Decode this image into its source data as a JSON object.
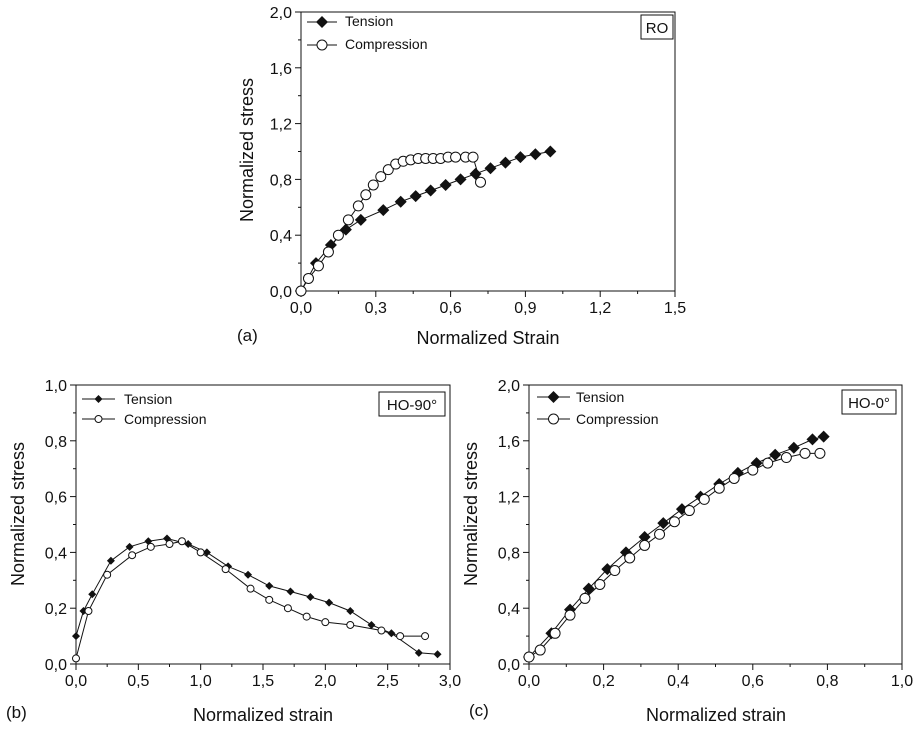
{
  "chart_data": [
    {
      "type": "line",
      "panel_label": "(a)",
      "tag": "RO",
      "xlabel": "Normalized Strain",
      "ylabel": "Normalized stress",
      "xlim": [
        0,
        1.5
      ],
      "ylim": [
        0,
        2.0
      ],
      "xticks": [
        "0,0",
        "0,3",
        "0,6",
        "0,9",
        "1,2",
        "1,5"
      ],
      "yticks": [
        "0,0",
        "0,4",
        "0,8",
        "1,2",
        "1,6",
        "2,0"
      ],
      "grid": false,
      "legend_position": "top-left",
      "series": [
        {
          "name": "Tension",
          "marker": "filled-diamond",
          "x": [
            0.0,
            0.06,
            0.12,
            0.18,
            0.24,
            0.33,
            0.4,
            0.46,
            0.52,
            0.58,
            0.64,
            0.7,
            0.76,
            0.82,
            0.88,
            0.94,
            1.0
          ],
          "y": [
            0.0,
            0.2,
            0.33,
            0.44,
            0.51,
            0.58,
            0.64,
            0.68,
            0.72,
            0.76,
            0.8,
            0.84,
            0.88,
            0.92,
            0.96,
            0.98,
            1.0
          ]
        },
        {
          "name": "Compression",
          "marker": "open-circle",
          "x": [
            0.0,
            0.03,
            0.07,
            0.11,
            0.15,
            0.19,
            0.23,
            0.26,
            0.29,
            0.32,
            0.35,
            0.38,
            0.41,
            0.44,
            0.47,
            0.5,
            0.53,
            0.56,
            0.59,
            0.62,
            0.66,
            0.69,
            0.72
          ],
          "y": [
            0.0,
            0.09,
            0.18,
            0.28,
            0.4,
            0.51,
            0.61,
            0.69,
            0.76,
            0.82,
            0.87,
            0.91,
            0.93,
            0.94,
            0.95,
            0.95,
            0.95,
            0.95,
            0.96,
            0.96,
            0.96,
            0.96,
            0.78
          ]
        }
      ]
    },
    {
      "type": "line",
      "panel_label": "(b)",
      "tag": "HO-90°",
      "xlabel": "Normalized strain",
      "ylabel": "Normalized stress",
      "xlim": [
        0,
        3.0
      ],
      "ylim": [
        0,
        1.0
      ],
      "xticks": [
        "0,0",
        "0,5",
        "1,0",
        "1,5",
        "2,0",
        "2,5",
        "3,0"
      ],
      "yticks": [
        "0,0",
        "0,2",
        "0,4",
        "0,6",
        "0,8",
        "1,0"
      ],
      "grid": false,
      "legend_position": "top-left",
      "series": [
        {
          "name": "Tension",
          "marker": "filled-diamond",
          "x": [
            0.0,
            0.06,
            0.13,
            0.28,
            0.43,
            0.58,
            0.73,
            0.9,
            1.05,
            1.22,
            1.38,
            1.55,
            1.72,
            1.88,
            2.03,
            2.2,
            2.37,
            2.53,
            2.75,
            2.9
          ],
          "y": [
            0.1,
            0.19,
            0.25,
            0.37,
            0.42,
            0.44,
            0.45,
            0.43,
            0.4,
            0.35,
            0.32,
            0.28,
            0.26,
            0.24,
            0.22,
            0.19,
            0.14,
            0.11,
            0.04,
            0.035
          ]
        },
        {
          "name": "Compression",
          "marker": "open-circle",
          "x": [
            0.0,
            0.1,
            0.25,
            0.45,
            0.6,
            0.75,
            0.85,
            1.0,
            1.2,
            1.4,
            1.55,
            1.7,
            1.85,
            2.0,
            2.2,
            2.45,
            2.6,
            2.8
          ],
          "y": [
            0.02,
            0.19,
            0.32,
            0.39,
            0.42,
            0.43,
            0.44,
            0.4,
            0.34,
            0.27,
            0.23,
            0.2,
            0.17,
            0.15,
            0.14,
            0.12,
            0.1,
            0.1
          ]
        }
      ]
    },
    {
      "type": "line",
      "panel_label": "(c)",
      "tag": "HO-0°",
      "xlabel": "Normalized strain",
      "ylabel": "Normalized stress",
      "xlim": [
        0,
        1.0
      ],
      "ylim": [
        0,
        2.0
      ],
      "xticks": [
        "0,0",
        "0,2",
        "0,4",
        "0,6",
        "0,8",
        "1,0"
      ],
      "yticks": [
        "0,0",
        "0,4",
        "0,8",
        "1,2",
        "1,6",
        "2,0"
      ],
      "grid": false,
      "legend_position": "top-left",
      "series": [
        {
          "name": "Tension",
          "marker": "filled-diamond",
          "x": [
            0.0,
            0.06,
            0.11,
            0.16,
            0.21,
            0.26,
            0.31,
            0.36,
            0.41,
            0.46,
            0.51,
            0.56,
            0.61,
            0.66,
            0.71,
            0.76,
            0.79
          ],
          "y": [
            0.05,
            0.22,
            0.39,
            0.54,
            0.68,
            0.8,
            0.91,
            1.01,
            1.11,
            1.2,
            1.29,
            1.37,
            1.44,
            1.5,
            1.55,
            1.61,
            1.63
          ]
        },
        {
          "name": "Compression",
          "marker": "open-circle",
          "x": [
            0.0,
            0.03,
            0.07,
            0.11,
            0.15,
            0.19,
            0.23,
            0.27,
            0.31,
            0.35,
            0.39,
            0.43,
            0.47,
            0.51,
            0.55,
            0.6,
            0.64,
            0.69,
            0.74,
            0.78
          ],
          "y": [
            0.05,
            0.1,
            0.22,
            0.35,
            0.47,
            0.57,
            0.67,
            0.76,
            0.85,
            0.93,
            1.02,
            1.1,
            1.18,
            1.26,
            1.33,
            1.39,
            1.44,
            1.48,
            1.51,
            1.51
          ]
        }
      ]
    }
  ]
}
